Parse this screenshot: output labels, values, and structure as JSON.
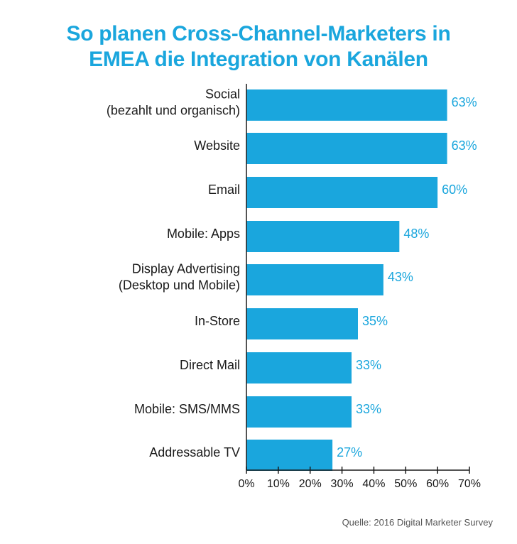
{
  "title_lines": [
    "So planen Cross-Channel-Marketers in",
    "EMEA die Integration von Kanälen"
  ],
  "source": "Quelle: 2016 Digital Marketer Survey",
  "colors": {
    "bar": "#1aa6dd",
    "title": "#1aa6dd",
    "value_label": "#1aa6dd",
    "axis": "#1a1a1a"
  },
  "chart_data": {
    "type": "bar",
    "orientation": "horizontal",
    "categories": [
      [
        "Social",
        "(bezahlt und organisch)"
      ],
      [
        "Website"
      ],
      [
        "Email"
      ],
      [
        "Mobile: Apps"
      ],
      [
        "Display Advertising",
        "(Desktop und Mobile)"
      ],
      [
        "In-Store"
      ],
      [
        "Direct Mail"
      ],
      [
        "Mobile: SMS/MMS"
      ],
      [
        "Addressable TV"
      ]
    ],
    "values": [
      63,
      63,
      60,
      48,
      43,
      35,
      33,
      33,
      27
    ],
    "value_labels": [
      "63%",
      "63%",
      "60%",
      "48%",
      "43%",
      "35%",
      "33%",
      "33%",
      "27%"
    ],
    "xlim": [
      0,
      70
    ],
    "xticks": [
      0,
      10,
      20,
      30,
      40,
      50,
      60,
      70
    ],
    "xtick_labels": [
      "0%",
      "10%",
      "20%",
      "30%",
      "40%",
      "50%",
      "60%",
      "70%"
    ],
    "grid": false,
    "legend": "none"
  }
}
